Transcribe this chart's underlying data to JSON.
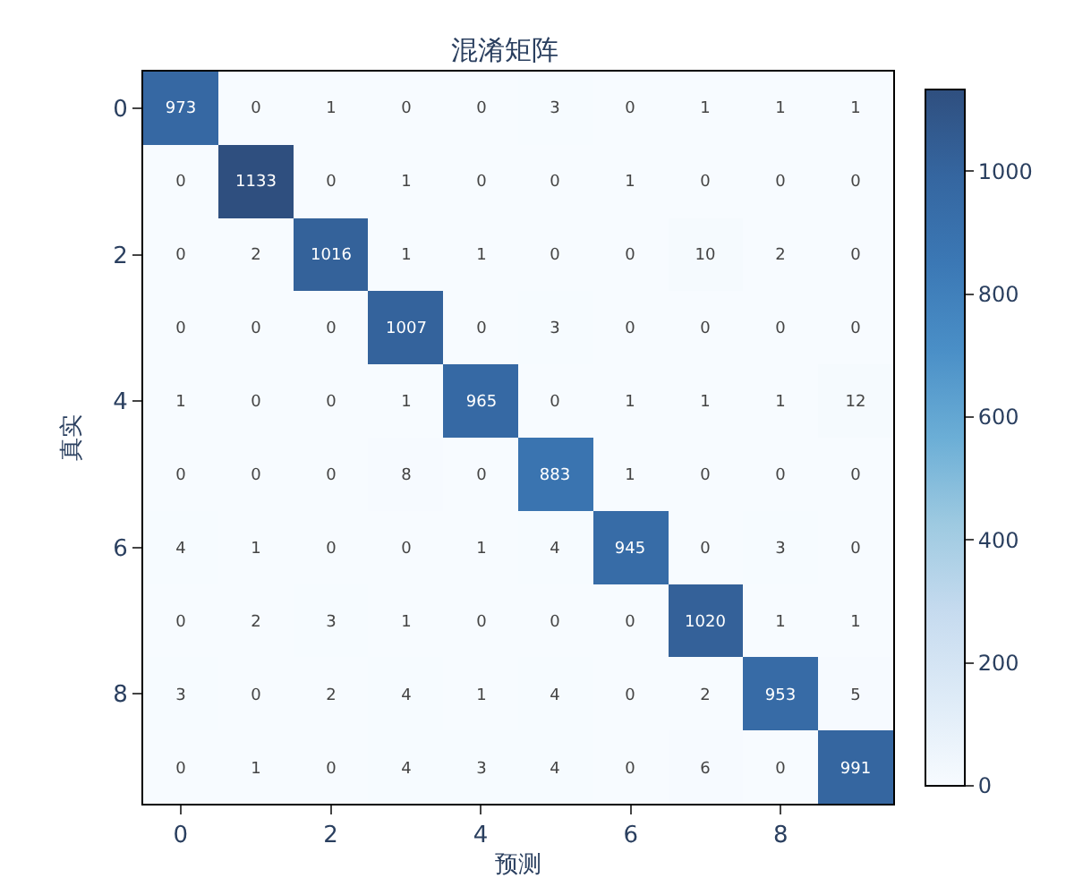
{
  "chart_data": {
    "type": "heatmap",
    "title": "混淆矩阵",
    "xlabel": "预测",
    "ylabel": "真实",
    "categories": [
      "0",
      null,
      "2",
      null,
      "4",
      null,
      "6",
      null,
      "8",
      null
    ],
    "y_categories": [
      "0",
      null,
      "2",
      null,
      "4",
      null,
      "6",
      null,
      "8",
      null
    ],
    "cells": [
      [
        973,
        0,
        1,
        0,
        0,
        3,
        0,
        1,
        1,
        1
      ],
      [
        0,
        1133,
        0,
        1,
        0,
        0,
        1,
        0,
        0,
        0
      ],
      [
        0,
        2,
        1016,
        1,
        1,
        0,
        0,
        10,
        2,
        0
      ],
      [
        0,
        0,
        0,
        1007,
        0,
        3,
        0,
        0,
        0,
        0
      ],
      [
        1,
        0,
        0,
        1,
        965,
        0,
        1,
        1,
        1,
        12
      ],
      [
        0,
        0,
        0,
        8,
        0,
        883,
        1,
        0,
        0,
        0
      ],
      [
        4,
        1,
        0,
        0,
        1,
        4,
        945,
        0,
        3,
        0
      ],
      [
        0,
        2,
        3,
        1,
        0,
        0,
        0,
        1020,
        1,
        1
      ],
      [
        3,
        0,
        2,
        4,
        1,
        4,
        0,
        2,
        953,
        5
      ],
      [
        0,
        1,
        0,
        4,
        3,
        4,
        0,
        6,
        0,
        991
      ]
    ],
    "clim": [
      0,
      1133
    ],
    "cticks": [
      0,
      200,
      400,
      600,
      800,
      1000
    ],
    "data_labels": true
  }
}
